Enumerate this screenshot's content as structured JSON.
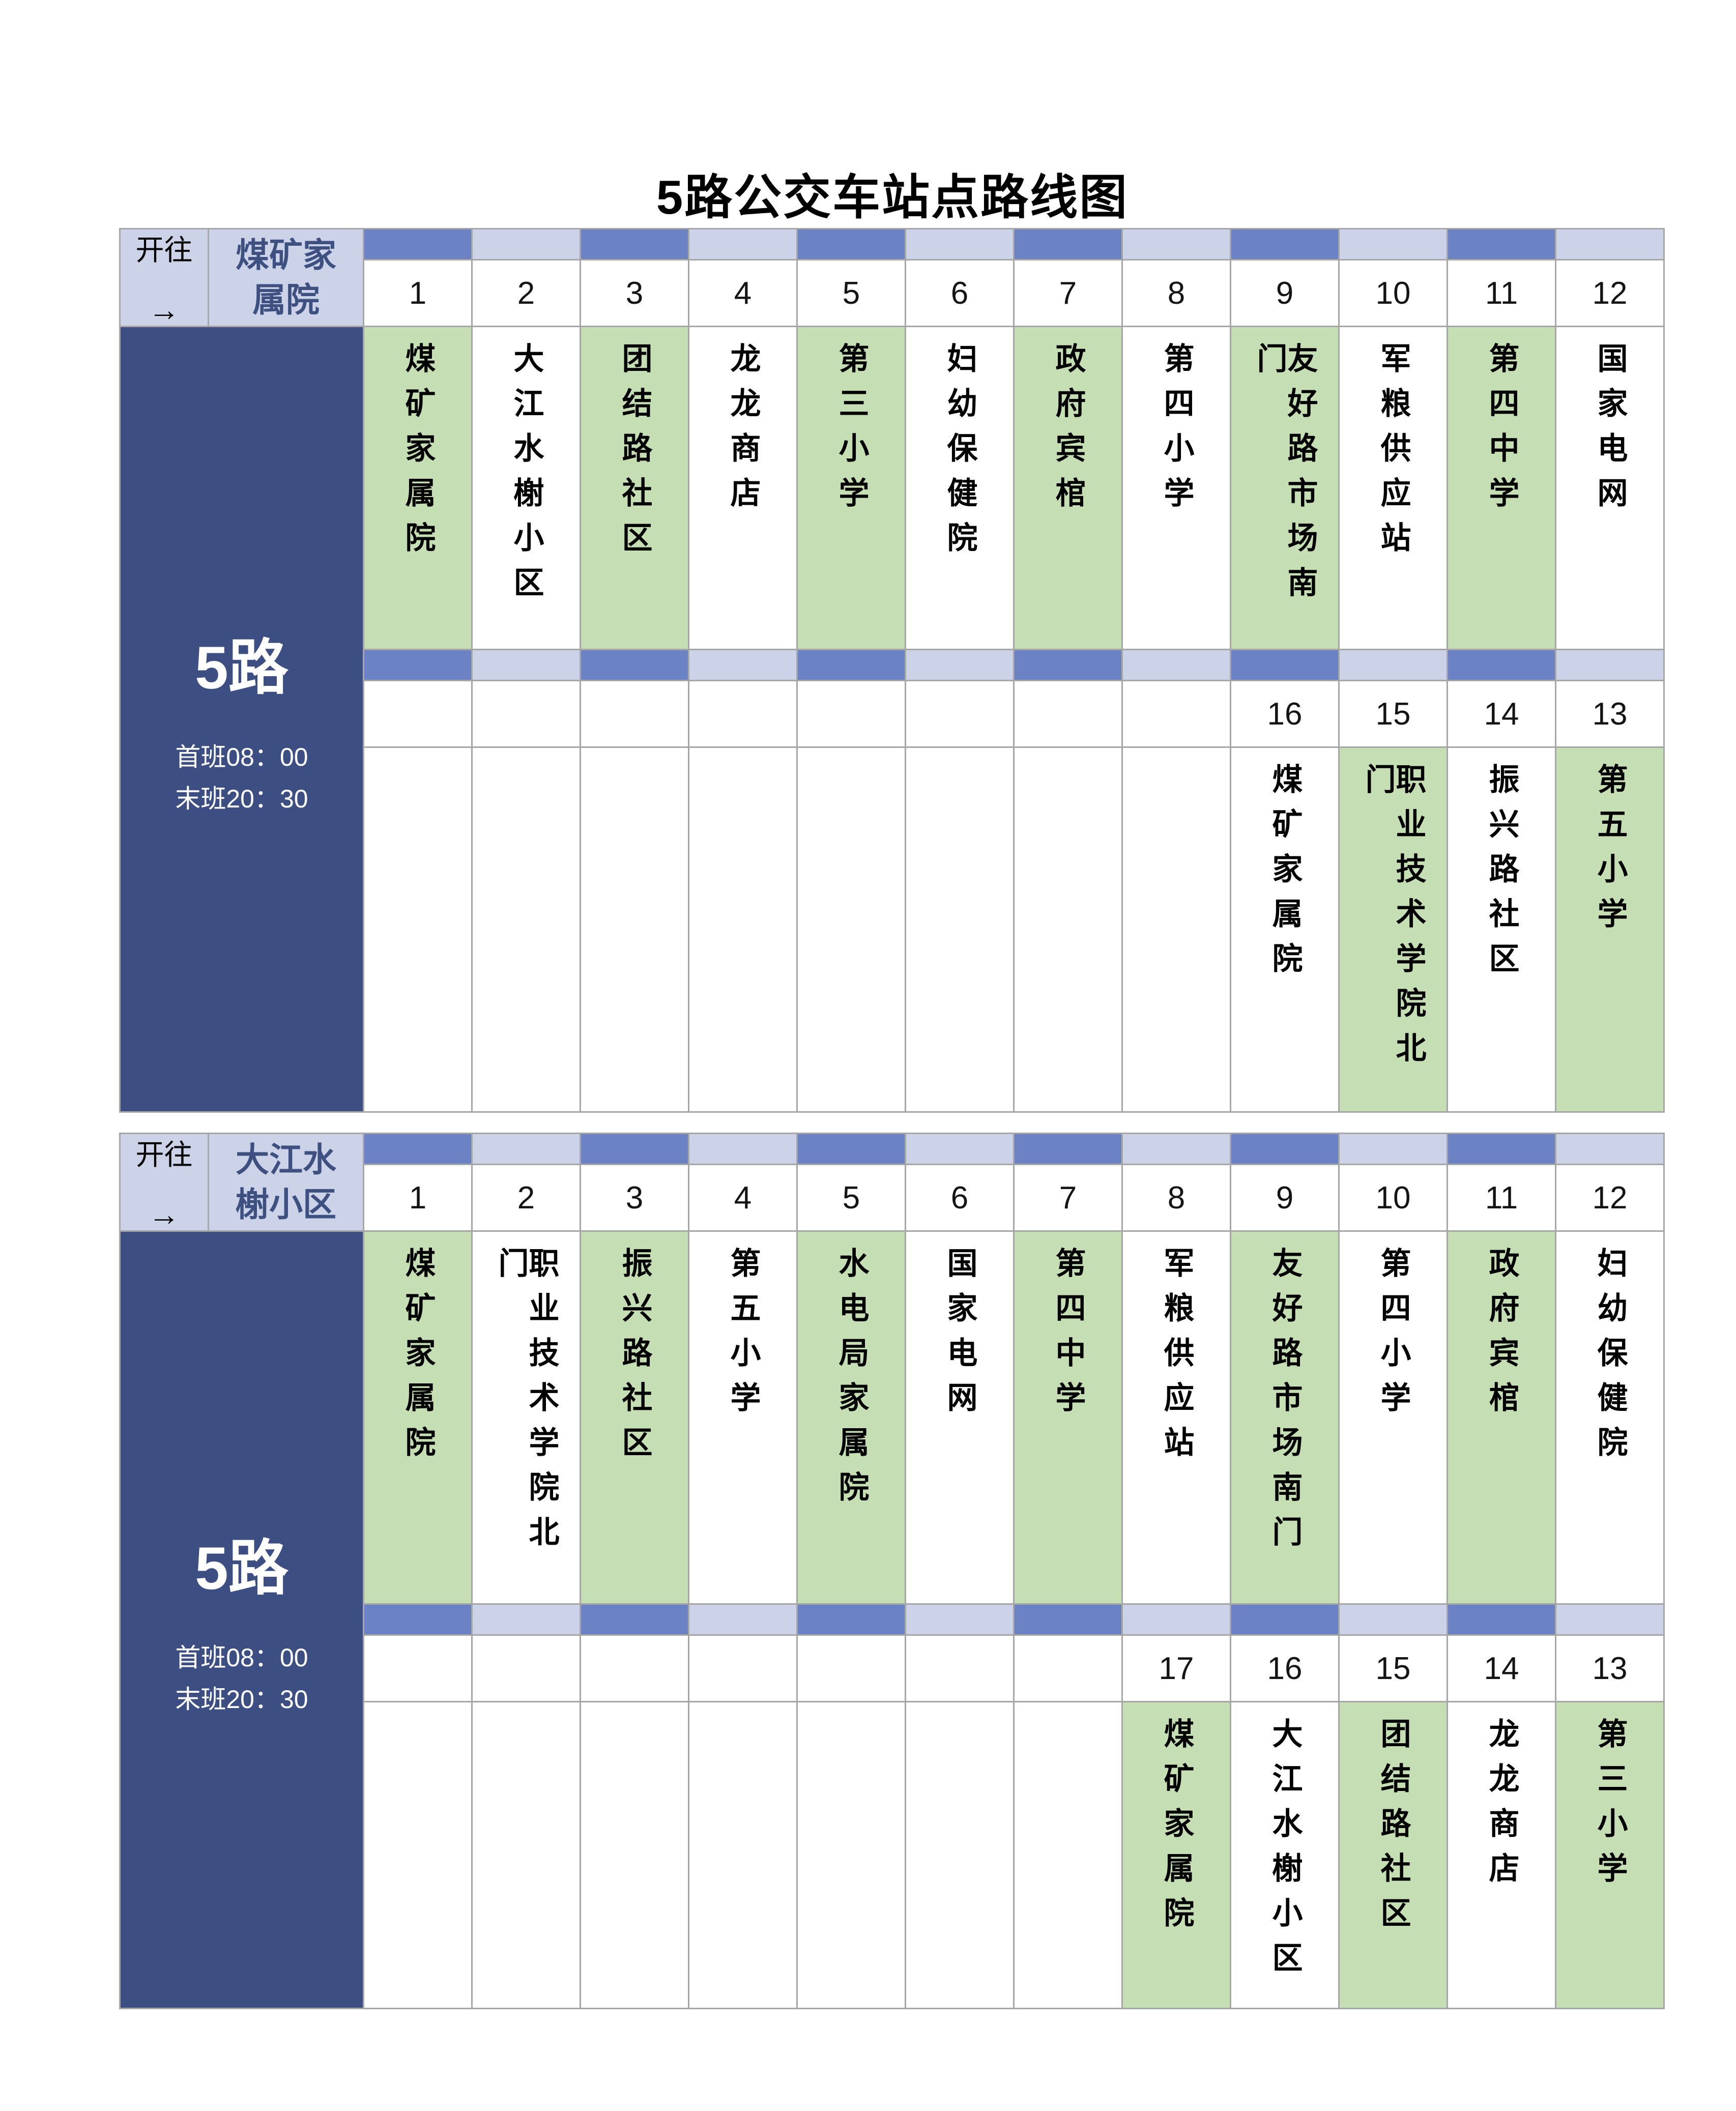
{
  "title": "5路公交车站点路线图",
  "colors": {
    "sidebar_navy": "#3d4f82",
    "bar_blue": "#6b83c4",
    "bar_lavender": "#ccd3e8",
    "station_green": "#c5deb4",
    "grid_border": "#a6a6a6",
    "destination_text": "#3d5080"
  },
  "tables": [
    {
      "direction_label": "开往",
      "arrow": "→",
      "destination": "煤矿家属院",
      "route_name": "5路",
      "first_bus": "首班08：00",
      "last_bus": "末班20：30",
      "segment1": {
        "numbers": [
          "1",
          "2",
          "3",
          "4",
          "5",
          "6",
          "7",
          "8",
          "9",
          "10",
          "11",
          "12"
        ],
        "stations": [
          "煤矿家属院",
          "大江水榭小区",
          "团结路社区",
          "龙龙商店",
          "第三小学",
          "妇幼保健院",
          "政府宾棺",
          "第四小学",
          "友好路市场南门",
          "军粮供应站",
          "第四中学",
          "国家电网"
        ]
      },
      "segment2": {
        "numbers": [
          "",
          "",
          "",
          "",
          "",
          "",
          "",
          "",
          "16",
          "15",
          "14",
          "13"
        ],
        "stations": [
          "",
          "",
          "",
          "",
          "",
          "",
          "",
          "",
          "煤矿家属院",
          "职业技术学院北门",
          "振兴路社区",
          "第五小学"
        ]
      }
    },
    {
      "direction_label": "开往",
      "arrow": "→",
      "destination": "大江水榭小区",
      "route_name": "5路",
      "first_bus": "首班08：00",
      "last_bus": "末班20：30",
      "segment1": {
        "numbers": [
          "1",
          "2",
          "3",
          "4",
          "5",
          "6",
          "7",
          "8",
          "9",
          "10",
          "11",
          "12"
        ],
        "stations": [
          "煤矿家属院",
          "职业技术学院北门",
          "振兴路社区",
          "第五小学",
          "水电局家属院",
          "国家电网",
          "第四中学",
          "军粮供应站",
          "友好路市场南门",
          "第四小学",
          "政府宾棺",
          "妇幼保健院"
        ]
      },
      "segment2": {
        "numbers": [
          "",
          "",
          "",
          "",
          "",
          "",
          "",
          "17",
          "16",
          "15",
          "14",
          "13"
        ],
        "stations": [
          "",
          "",
          "",
          "",
          "",
          "",
          "",
          "煤矿家属院",
          "大江水榭小区",
          "团结路社区",
          "龙龙商店",
          "第三小学"
        ]
      }
    }
  ]
}
